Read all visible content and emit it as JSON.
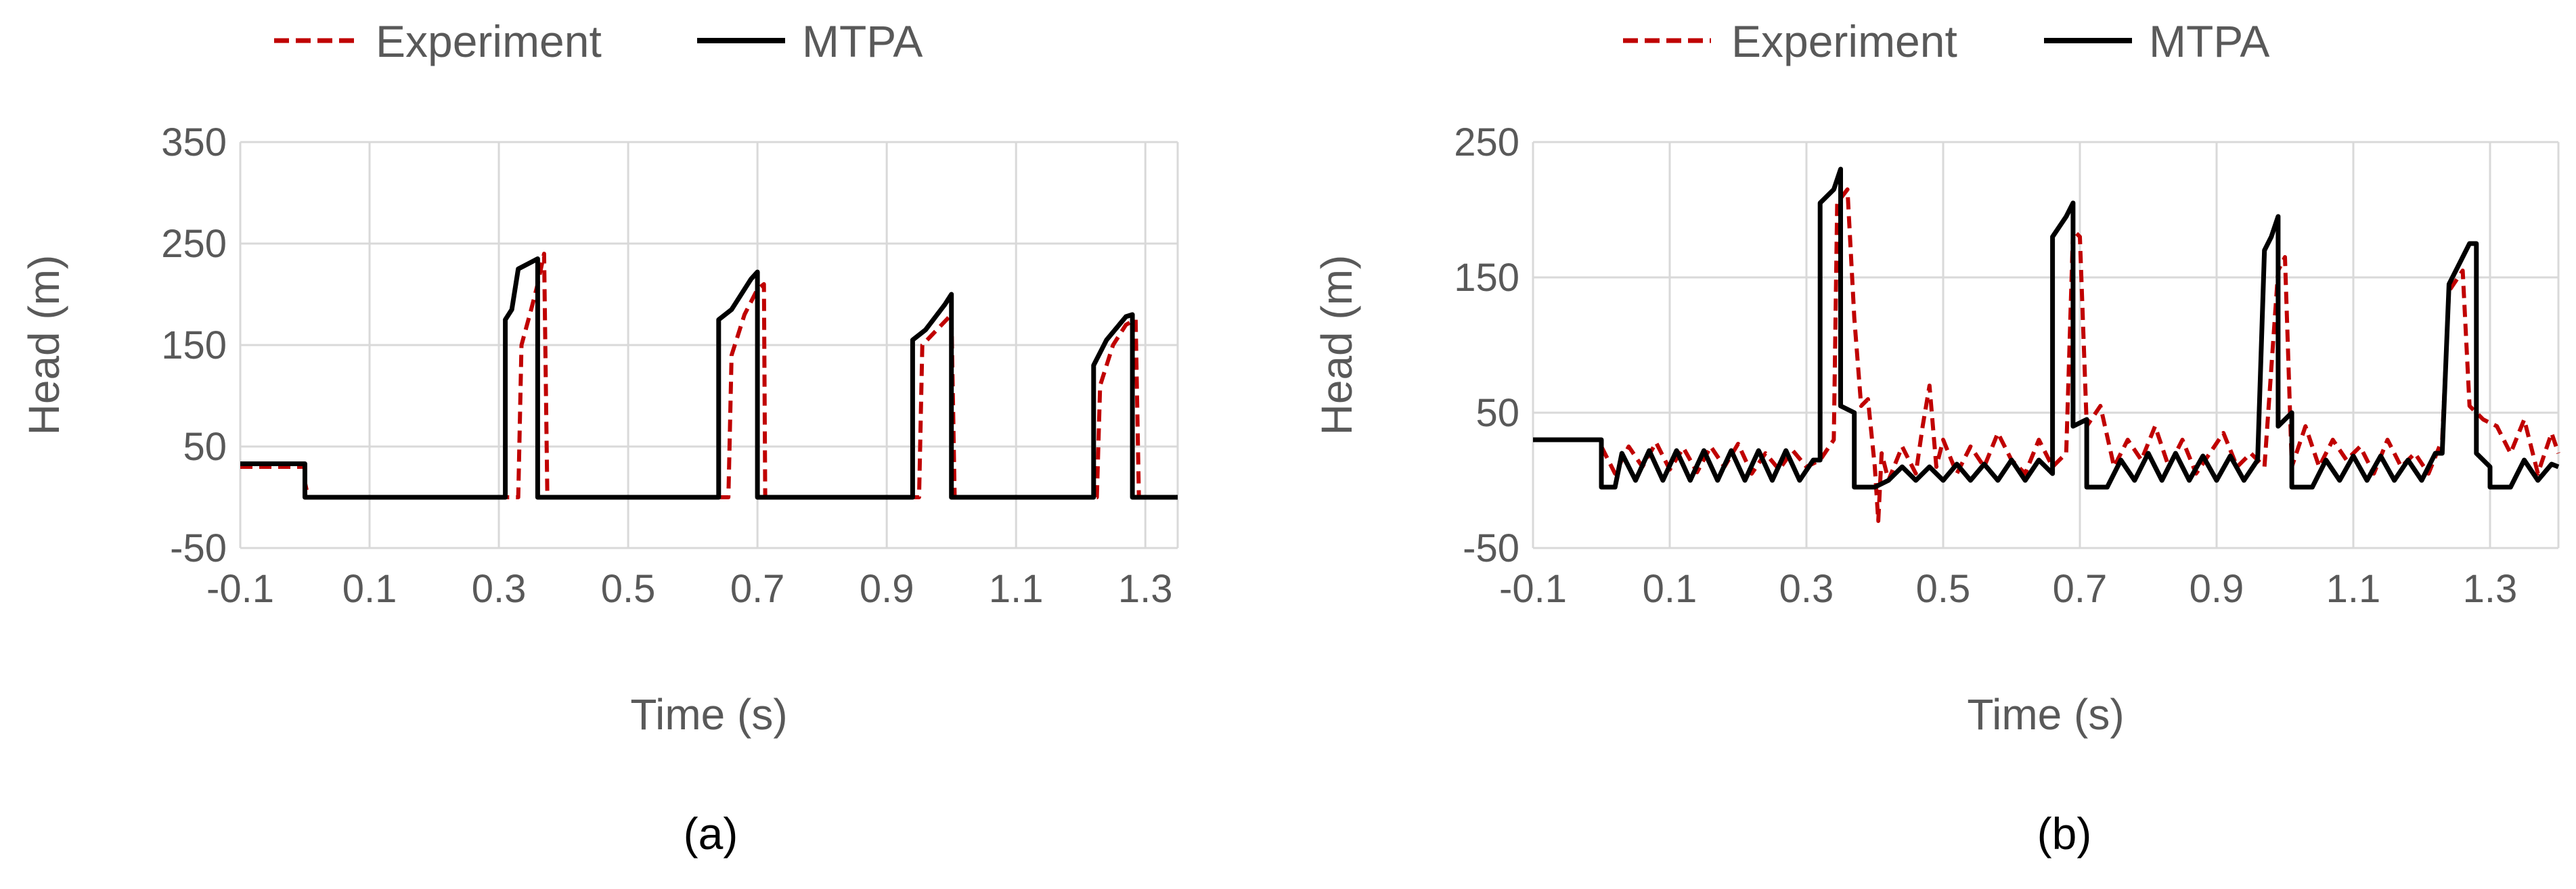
{
  "chart_data": [
    {
      "type": "line",
      "panel_label": "(a)",
      "xlabel": "Time (s)",
      "ylabel": "Head (m)",
      "xlim": [
        -0.1,
        1.35
      ],
      "ylim": [
        -50,
        350
      ],
      "x_ticks": [
        -0.1,
        0.1,
        0.3,
        0.5,
        0.7,
        0.9,
        1.1,
        1.3
      ],
      "y_ticks": [
        -50,
        50,
        150,
        250,
        350
      ],
      "grid": true,
      "legend_position": "top",
      "series": [
        {
          "name": "Experiment",
          "style": "dashed",
          "color": "#c00000",
          "points": [
            [
              -0.1,
              30
            ],
            [
              0.0,
              30
            ],
            [
              0.0,
              15
            ],
            [
              0.005,
              0
            ],
            [
              0.33,
              0
            ],
            [
              0.335,
              150
            ],
            [
              0.35,
              185
            ],
            [
              0.36,
              210
            ],
            [
              0.37,
              240
            ],
            [
              0.375,
              0
            ],
            [
              0.655,
              0
            ],
            [
              0.66,
              140
            ],
            [
              0.68,
              180
            ],
            [
              0.7,
              205
            ],
            [
              0.71,
              210
            ],
            [
              0.712,
              0
            ],
            [
              0.95,
              0
            ],
            [
              0.955,
              150
            ],
            [
              0.97,
              160
            ],
            [
              1.0,
              180
            ],
            [
              1.005,
              0
            ],
            [
              1.225,
              0
            ],
            [
              1.23,
              110
            ],
            [
              1.25,
              150
            ],
            [
              1.27,
              170
            ],
            [
              1.285,
              175
            ],
            [
              1.29,
              0
            ],
            [
              1.35,
              0
            ]
          ]
        },
        {
          "name": "MTPA",
          "style": "solid",
          "color": "#000000",
          "points": [
            [
              -0.1,
              33
            ],
            [
              0.0,
              33
            ],
            [
              0.0,
              0
            ],
            [
              0.31,
              0
            ],
            [
              0.31,
              175
            ],
            [
              0.32,
              185
            ],
            [
              0.33,
              225
            ],
            [
              0.36,
              235
            ],
            [
              0.36,
              0
            ],
            [
              0.64,
              0
            ],
            [
              0.64,
              175
            ],
            [
              0.66,
              185
            ],
            [
              0.69,
              215
            ],
            [
              0.7,
              222
            ],
            [
              0.7,
              0
            ],
            [
              0.94,
              0
            ],
            [
              0.94,
              155
            ],
            [
              0.96,
              165
            ],
            [
              0.99,
              190
            ],
            [
              1.0,
              200
            ],
            [
              1.0,
              0
            ],
            [
              1.22,
              0
            ],
            [
              1.22,
              130
            ],
            [
              1.24,
              155
            ],
            [
              1.27,
              178
            ],
            [
              1.28,
              180
            ],
            [
              1.28,
              0
            ],
            [
              1.35,
              0
            ]
          ]
        }
      ]
    },
    {
      "type": "line",
      "panel_label": "(b)",
      "xlabel": "Time (s)",
      "ylabel": "Head (m)",
      "xlim": [
        -0.1,
        1.4
      ],
      "ylim": [
        -50,
        250
      ],
      "x_ticks": [
        -0.1,
        0.1,
        0.3,
        0.5,
        0.7,
        0.9,
        1.1,
        1.3
      ],
      "y_ticks": [
        -50,
        50,
        150,
        250
      ],
      "grid": true,
      "legend_position": "top",
      "series": [
        {
          "name": "Experiment",
          "style": "dashed",
          "color": "#c00000",
          "points": [
            [
              -0.1,
              30
            ],
            [
              0.0,
              30
            ],
            [
              0.0,
              25
            ],
            [
              0.02,
              5
            ],
            [
              0.04,
              25
            ],
            [
              0.06,
              10
            ],
            [
              0.08,
              28
            ],
            [
              0.1,
              8
            ],
            [
              0.12,
              24
            ],
            [
              0.14,
              6
            ],
            [
              0.16,
              25
            ],
            [
              0.18,
              10
            ],
            [
              0.2,
              27
            ],
            [
              0.22,
              5
            ],
            [
              0.24,
              20
            ],
            [
              0.26,
              8
            ],
            [
              0.28,
              22
            ],
            [
              0.3,
              10
            ],
            [
              0.32,
              15
            ],
            [
              0.34,
              30
            ],
            [
              0.345,
              205
            ],
            [
              0.36,
              215
            ],
            [
              0.37,
              120
            ],
            [
              0.38,
              55
            ],
            [
              0.39,
              60
            ],
            [
              0.4,
              10
            ],
            [
              0.405,
              -30
            ],
            [
              0.41,
              20
            ],
            [
              0.42,
              0
            ],
            [
              0.44,
              25
            ],
            [
              0.46,
              5
            ],
            [
              0.47,
              40
            ],
            [
              0.48,
              70
            ],
            [
              0.49,
              10
            ],
            [
              0.5,
              30
            ],
            [
              0.52,
              5
            ],
            [
              0.54,
              25
            ],
            [
              0.56,
              10
            ],
            [
              0.58,
              35
            ],
            [
              0.6,
              15
            ],
            [
              0.62,
              5
            ],
            [
              0.64,
              30
            ],
            [
              0.66,
              10
            ],
            [
              0.68,
              20
            ],
            [
              0.69,
              185
            ],
            [
              0.7,
              180
            ],
            [
              0.71,
              40
            ],
            [
              0.73,
              55
            ],
            [
              0.75,
              10
            ],
            [
              0.77,
              30
            ],
            [
              0.79,
              15
            ],
            [
              0.81,
              40
            ],
            [
              0.83,
              10
            ],
            [
              0.85,
              30
            ],
            [
              0.87,
              5
            ],
            [
              0.89,
              20
            ],
            [
              0.91,
              35
            ],
            [
              0.93,
              10
            ],
            [
              0.95,
              20
            ],
            [
              0.97,
              10
            ],
            [
              0.99,
              155
            ],
            [
              1.0,
              165
            ],
            [
              1.01,
              10
            ],
            [
              1.03,
              40
            ],
            [
              1.05,
              10
            ],
            [
              1.07,
              30
            ],
            [
              1.09,
              15
            ],
            [
              1.11,
              25
            ],
            [
              1.13,
              5
            ],
            [
              1.15,
              30
            ],
            [
              1.17,
              10
            ],
            [
              1.19,
              20
            ],
            [
              1.21,
              5
            ],
            [
              1.23,
              30
            ],
            [
              1.24,
              140
            ],
            [
              1.26,
              155
            ],
            [
              1.27,
              55
            ],
            [
              1.29,
              45
            ],
            [
              1.31,
              40
            ],
            [
              1.33,
              20
            ],
            [
              1.35,
              45
            ],
            [
              1.37,
              5
            ],
            [
              1.39,
              35
            ],
            [
              1.4,
              20
            ]
          ]
        },
        {
          "name": "MTPA",
          "style": "solid",
          "color": "#000000",
          "points": [
            [
              -0.1,
              30
            ],
            [
              0.0,
              30
            ],
            [
              0.0,
              -5
            ],
            [
              0.02,
              -5
            ],
            [
              0.03,
              20
            ],
            [
              0.05,
              0
            ],
            [
              0.07,
              22
            ],
            [
              0.09,
              0
            ],
            [
              0.11,
              22
            ],
            [
              0.13,
              0
            ],
            [
              0.15,
              22
            ],
            [
              0.17,
              0
            ],
            [
              0.19,
              22
            ],
            [
              0.21,
              0
            ],
            [
              0.23,
              22
            ],
            [
              0.25,
              0
            ],
            [
              0.27,
              22
            ],
            [
              0.29,
              0
            ],
            [
              0.31,
              15
            ],
            [
              0.32,
              15
            ],
            [
              0.32,
              205
            ],
            [
              0.34,
              215
            ],
            [
              0.35,
              230
            ],
            [
              0.35,
              55
            ],
            [
              0.37,
              50
            ],
            [
              0.37,
              -5
            ],
            [
              0.4,
              -5
            ],
            [
              0.42,
              0
            ],
            [
              0.44,
              10
            ],
            [
              0.46,
              0
            ],
            [
              0.48,
              10
            ],
            [
              0.5,
              0
            ],
            [
              0.52,
              12
            ],
            [
              0.54,
              0
            ],
            [
              0.56,
              12
            ],
            [
              0.58,
              0
            ],
            [
              0.6,
              15
            ],
            [
              0.62,
              0
            ],
            [
              0.64,
              15
            ],
            [
              0.66,
              5
            ],
            [
              0.66,
              180
            ],
            [
              0.68,
              195
            ],
            [
              0.69,
              205
            ],
            [
              0.69,
              40
            ],
            [
              0.71,
              45
            ],
            [
              0.71,
              -5
            ],
            [
              0.74,
              -5
            ],
            [
              0.76,
              15
            ],
            [
              0.78,
              0
            ],
            [
              0.8,
              20
            ],
            [
              0.82,
              0
            ],
            [
              0.84,
              20
            ],
            [
              0.86,
              0
            ],
            [
              0.88,
              18
            ],
            [
              0.9,
              0
            ],
            [
              0.92,
              18
            ],
            [
              0.94,
              0
            ],
            [
              0.96,
              15
            ],
            [
              0.97,
              170
            ],
            [
              0.98,
              180
            ],
            [
              0.99,
              195
            ],
            [
              0.99,
              40
            ],
            [
              1.01,
              50
            ],
            [
              1.01,
              -5
            ],
            [
              1.04,
              -5
            ],
            [
              1.06,
              15
            ],
            [
              1.08,
              0
            ],
            [
              1.1,
              18
            ],
            [
              1.12,
              0
            ],
            [
              1.14,
              18
            ],
            [
              1.16,
              0
            ],
            [
              1.18,
              15
            ],
            [
              1.2,
              0
            ],
            [
              1.22,
              20
            ],
            [
              1.23,
              20
            ],
            [
              1.24,
              145
            ],
            [
              1.26,
              165
            ],
            [
              1.27,
              175
            ],
            [
              1.28,
              175
            ],
            [
              1.28,
              20
            ],
            [
              1.3,
              10
            ],
            [
              1.3,
              -5
            ],
            [
              1.33,
              -5
            ],
            [
              1.35,
              15
            ],
            [
              1.37,
              0
            ],
            [
              1.39,
              12
            ],
            [
              1.4,
              10
            ]
          ]
        }
      ]
    }
  ]
}
